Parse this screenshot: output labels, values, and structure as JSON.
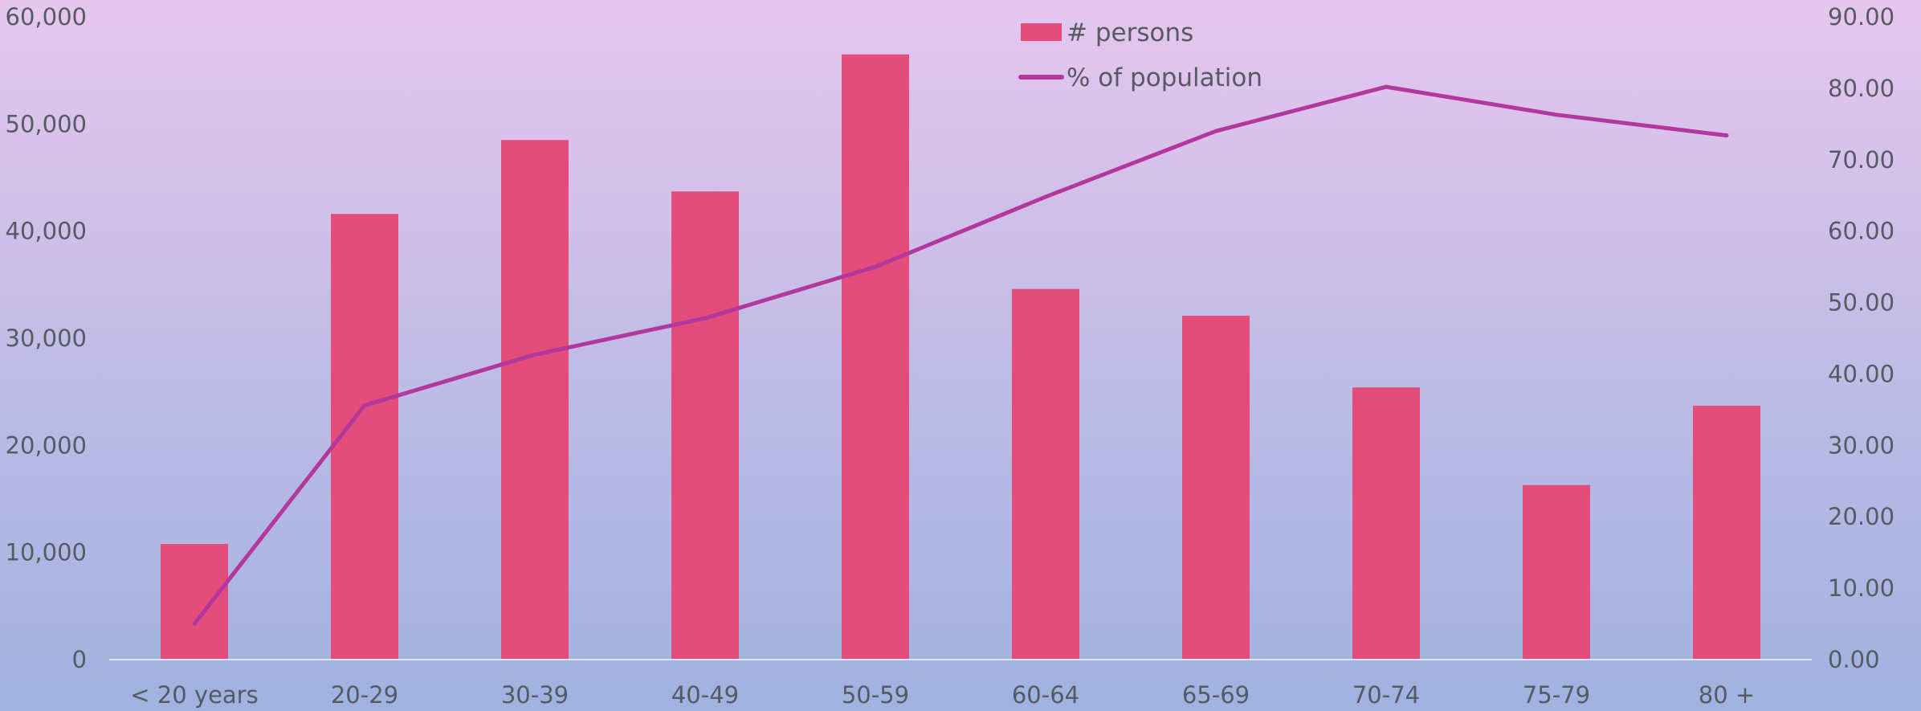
{
  "chart_data": {
    "type": "bar",
    "categories": [
      "< 20 years",
      "20-29",
      "30-39",
      "40-49",
      "50-59",
      "60-64",
      "65-69",
      "70-74",
      "75-79",
      "80 +"
    ],
    "series": [
      {
        "name": "# persons",
        "type": "bar",
        "axis": "left",
        "values": [
          10800,
          41600,
          48500,
          43700,
          56500,
          34600,
          32100,
          25400,
          16300,
          23700
        ]
      },
      {
        "name": "% of population",
        "type": "line",
        "axis": "right",
        "values": [
          5.0,
          35.6,
          42.7,
          47.8,
          55.0,
          64.8,
          74.0,
          80.2,
          76.3,
          73.4
        ]
      }
    ],
    "title": "",
    "xlabel": "",
    "ylabel": "",
    "y_left": {
      "min": 0,
      "max": 60000,
      "ticks": [
        "0",
        "10,000",
        "20,000",
        "30,000",
        "40,000",
        "50,000",
        "60,000"
      ]
    },
    "y_right": {
      "min": 0,
      "max": 90,
      "ticks": [
        "0.00",
        "10.00",
        "20.00",
        "30.00",
        "40.00",
        "50.00",
        "60.00",
        "70.00",
        "80.00",
        "90.00"
      ]
    },
    "grid": false,
    "legend": "top-center",
    "colors": {
      "bar": "#e34c7b",
      "line": "#b2389e",
      "axis_line": "#e6e6ee",
      "text": "#555a63"
    }
  }
}
